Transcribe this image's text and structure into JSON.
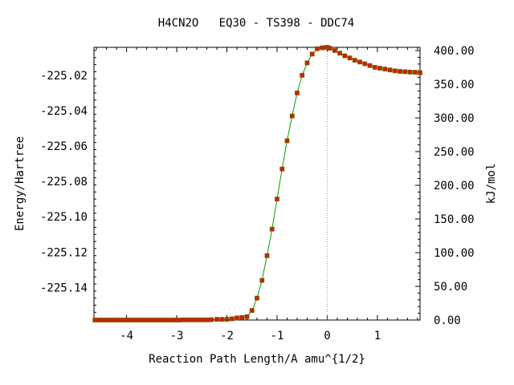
{
  "chart_data": {
    "type": "line",
    "title": "H4CN2O   EQ30 - TS398 - DDC74",
    "xlabel": "Reaction Path Length/A amu^{1/2}",
    "ylabel": "Energy/Hartree",
    "y2label": "kJ/mol",
    "xlim": [
      -4.65,
      1.85
    ],
    "ylim": [
      -225.1584,
      -225.0042
    ],
    "y2lim": [
      0.0,
      404.8
    ],
    "x_ticks": [
      "-4",
      "-3",
      "-2",
      "-1",
      "0",
      "1"
    ],
    "y_ticks": [
      "-225.02",
      "-225.04",
      "-225.06",
      "-225.08",
      "-225.10",
      "-225.12",
      "-225.14"
    ],
    "y2_ticks": [
      "400.00",
      "350.00",
      "300.00",
      "250.00",
      "200.00",
      "150.00",
      "100.00",
      "50.00",
      "0.00"
    ],
    "ts_marker_x": 0.0,
    "colors": {
      "line": "#00a000",
      "marker": "#cc2200",
      "marker_edge": "#7a5a00",
      "ts_line": "#9a9a9a"
    },
    "series": [
      {
        "x": [
          -4.63,
          -4.55,
          -4.47,
          -4.39,
          -4.31,
          -4.23,
          -4.15,
          -4.07,
          -3.99,
          -3.91,
          -3.83,
          -3.75,
          -3.67,
          -3.59,
          -3.51,
          -3.43,
          -3.35,
          -3.27,
          -3.19,
          -3.11,
          -3.03,
          -2.95,
          -2.87,
          -2.79,
          -2.71,
          -2.63,
          -2.55,
          -2.47,
          -2.39,
          -2.31,
          -2.2,
          -2.1,
          -2.0,
          -1.9,
          -1.8,
          -1.7,
          -1.6,
          -1.5,
          -1.4,
          -1.3,
          -1.2,
          -1.1,
          -1.0,
          -0.9,
          -0.8,
          -0.7,
          -0.6,
          -0.5,
          -0.4,
          -0.3,
          -0.2,
          -0.1,
          -0.03,
          0.0,
          0.05,
          0.15,
          0.25,
          0.35,
          0.45,
          0.55,
          0.65,
          0.75,
          0.85,
          0.95,
          1.05,
          1.15,
          1.25,
          1.35,
          1.45,
          1.55,
          1.65,
          1.75,
          1.85
        ],
        "y": [
          -225.1584,
          -225.1584,
          -225.1584,
          -225.1584,
          -225.1584,
          -225.1584,
          -225.1584,
          -225.1584,
          -225.1584,
          -225.1584,
          -225.1584,
          -225.1584,
          -225.1584,
          -225.1584,
          -225.1584,
          -225.1584,
          -225.1584,
          -225.1584,
          -225.1584,
          -225.1584,
          -225.1584,
          -225.1584,
          -225.1583,
          -225.1583,
          -225.1583,
          -225.1583,
          -225.1583,
          -225.1583,
          -225.1583,
          -225.1582,
          -225.158,
          -225.158,
          -225.158,
          -225.1577,
          -225.1572,
          -225.157,
          -225.1565,
          -225.153,
          -225.146,
          -225.136,
          -225.122,
          -225.107,
          -225.09,
          -225.073,
          -225.057,
          -225.043,
          -225.03,
          -225.02,
          -225.013,
          -225.008,
          -225.005,
          -225.0045,
          -225.0043,
          -225.0042,
          -225.0047,
          -225.006,
          -225.0075,
          -225.009,
          -225.0102,
          -225.0115,
          -225.0125,
          -225.0135,
          -225.0145,
          -225.0155,
          -225.016,
          -225.0165,
          -225.017,
          -225.0175,
          -225.0178,
          -225.018,
          -225.0182,
          -225.0183,
          -225.0185
        ]
      }
    ]
  }
}
